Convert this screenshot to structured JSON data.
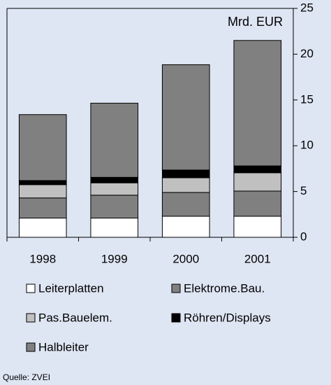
{
  "chart_data": {
    "type": "bar",
    "stacked": true,
    "unit_label": "Mrd. EUR",
    "source": "Quelle: ZVEI",
    "categories": [
      "1998",
      "1999",
      "2000",
      "2001"
    ],
    "series": [
      {
        "name": "Leiterplatten",
        "color": "#ffffff",
        "values": [
          2.1,
          2.1,
          2.3,
          2.3
        ]
      },
      {
        "name": "Elektrome.Bau.",
        "color": "#808080",
        "values": [
          2.2,
          2.5,
          2.6,
          2.75
        ]
      },
      {
        "name": "Pas.Bauelem.",
        "color": "#c0c0c0",
        "values": [
          1.45,
          1.35,
          1.6,
          2.0
        ]
      },
      {
        "name": "Röhren/Displays",
        "color": "#000000",
        "values": [
          0.45,
          0.6,
          0.85,
          0.75
        ]
      },
      {
        "name": "Halbleiter",
        "color": "#808080",
        "values": [
          7.2,
          8.1,
          11.5,
          13.7
        ]
      }
    ],
    "ylim": [
      0,
      25
    ],
    "yticks": [
      0,
      5,
      10,
      15,
      20,
      25
    ],
    "y_axis_side": "right"
  }
}
